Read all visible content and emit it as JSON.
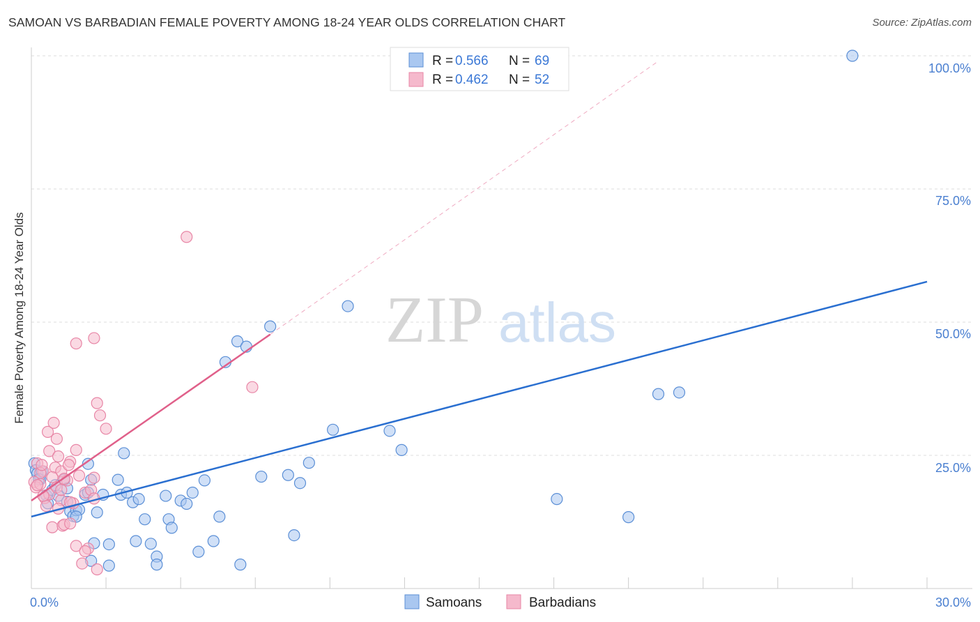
{
  "header": {
    "title": "SAMOAN VS BARBADIAN FEMALE POVERTY AMONG 18-24 YEAR OLDS CORRELATION CHART",
    "source": "Source: ZipAtlas.com"
  },
  "watermark": {
    "zip": "ZIP",
    "atlas": "atlas"
  },
  "legend": {
    "r_label": "R = ",
    "n_label": "N = ",
    "entries": [
      {
        "r": "0.566",
        "n": "69"
      },
      {
        "r": "0.462",
        "n": "52"
      }
    ]
  },
  "colors": {
    "samoans_fill": "#a9c7f0",
    "samoans_stroke": "#5b8fd6",
    "samoans_line": "#2a6fd0",
    "barbadians_fill": "#f5b9cc",
    "barbadians_stroke": "#e886a6",
    "barbadians_line": "#e0608a",
    "tick_text": "#4a7fd0",
    "grid": "#dddddd"
  },
  "chart_data": {
    "type": "scatter",
    "title": "SAMOAN VS BARBADIAN FEMALE POVERTY AMONG 18-24 YEAR OLDS CORRELATION CHART",
    "ylabel": "Female Poverty Among 18-24 Year Olds",
    "xlabel": "",
    "xlim": [
      0,
      30
    ],
    "ylim": [
      0,
      105
    ],
    "x_tick_labels": [
      {
        "value": 0,
        "label": "0.0%"
      },
      {
        "value": 30,
        "label": "30.0%"
      }
    ],
    "y_tick_labels": [
      {
        "value": 25,
        "label": "25.0%"
      },
      {
        "value": 50,
        "label": "50.0%"
      },
      {
        "value": 75,
        "label": "75.0%"
      },
      {
        "value": 100,
        "label": "100.0%"
      }
    ],
    "grid": true,
    "legend_position": "top-center",
    "series": [
      {
        "name": "Samoans",
        "trend": {
          "x": [
            0,
            30
          ],
          "y": [
            13.5,
            57.6
          ]
        },
        "points": [
          [
            0.1,
            23.5
          ],
          [
            0.15,
            22.2
          ],
          [
            0.2,
            21.6
          ],
          [
            0.3,
            20.5
          ],
          [
            0.35,
            22.0
          ],
          [
            0.5,
            17.5
          ],
          [
            0.55,
            16.0
          ],
          [
            0.7,
            18.5
          ],
          [
            0.8,
            19.4
          ],
          [
            0.9,
            17.4
          ],
          [
            1.1,
            20.4
          ],
          [
            1.2,
            16.3
          ],
          [
            1.3,
            14.5
          ],
          [
            1.4,
            13.6
          ],
          [
            1.5,
            14.7
          ],
          [
            1.6,
            14.8
          ],
          [
            1.8,
            17.6
          ],
          [
            1.9,
            23.4
          ],
          [
            2.0,
            20.4
          ],
          [
            2.1,
            8.5
          ],
          [
            2.2,
            14.3
          ],
          [
            2.4,
            17.6
          ],
          [
            2.6,
            8.3
          ],
          [
            2.9,
            20.4
          ],
          [
            3.0,
            17.6
          ],
          [
            3.1,
            25.4
          ],
          [
            3.4,
            16.2
          ],
          [
            3.5,
            8.9
          ],
          [
            3.8,
            13.0
          ],
          [
            4.0,
            8.4
          ],
          [
            4.2,
            6.0
          ],
          [
            4.5,
            17.4
          ],
          [
            4.6,
            13.0
          ],
          [
            4.7,
            11.4
          ],
          [
            5.0,
            16.5
          ],
          [
            5.2,
            15.9
          ],
          [
            5.4,
            18.0
          ],
          [
            5.6,
            6.9
          ],
          [
            5.8,
            20.3
          ],
          [
            6.1,
            8.9
          ],
          [
            6.3,
            13.5
          ],
          [
            6.5,
            42.5
          ],
          [
            6.9,
            46.4
          ],
          [
            7.2,
            45.4
          ],
          [
            7.7,
            21.0
          ],
          [
            8.0,
            49.2
          ],
          [
            8.6,
            21.3
          ],
          [
            8.8,
            10.0
          ],
          [
            9.0,
            19.8
          ],
          [
            9.3,
            23.6
          ],
          [
            10.1,
            29.8
          ],
          [
            10.6,
            53.0
          ],
          [
            12.0,
            29.6
          ],
          [
            12.4,
            26.0
          ],
          [
            17.6,
            16.8
          ],
          [
            20.0,
            13.4
          ],
          [
            21.0,
            36.5
          ],
          [
            21.7,
            36.8
          ],
          [
            27.5,
            100
          ],
          [
            2.0,
            5.2
          ],
          [
            2.6,
            4.3
          ],
          [
            3.2,
            18.0
          ],
          [
            4.2,
            4.5
          ],
          [
            7.0,
            4.5
          ],
          [
            1.2,
            18.8
          ],
          [
            0.25,
            20.5
          ],
          [
            1.5,
            13.5
          ],
          [
            3.6,
            16.8
          ],
          [
            1.9,
            18.0
          ]
        ]
      },
      {
        "name": "Barbadians",
        "trend": {
          "x": [
            0,
            8
          ],
          "y": [
            16.5,
            47.7
          ]
        },
        "trend_extension": {
          "x": [
            8,
            21
          ],
          "y": [
            47.7,
            99
          ]
        },
        "points": [
          [
            0.1,
            20.0
          ],
          [
            0.15,
            19.0
          ],
          [
            0.2,
            23.5
          ],
          [
            0.3,
            19.6
          ],
          [
            0.4,
            22.0
          ],
          [
            0.45,
            17.0
          ],
          [
            0.5,
            15.5
          ],
          [
            0.55,
            29.4
          ],
          [
            0.6,
            25.8
          ],
          [
            0.7,
            11.5
          ],
          [
            0.75,
            31.1
          ],
          [
            0.8,
            22.7
          ],
          [
            0.9,
            24.8
          ],
          [
            1.0,
            22.0
          ],
          [
            1.05,
            11.8
          ],
          [
            1.1,
            12.0
          ],
          [
            1.2,
            20.3
          ],
          [
            1.3,
            23.8
          ],
          [
            1.4,
            16.0
          ],
          [
            1.5,
            26.0
          ],
          [
            1.5,
            46.0
          ],
          [
            1.6,
            21.2
          ],
          [
            1.7,
            4.7
          ],
          [
            1.8,
            18.0
          ],
          [
            1.9,
            7.5
          ],
          [
            2.0,
            18.5
          ],
          [
            2.1,
            47.0
          ],
          [
            2.2,
            34.8
          ],
          [
            2.3,
            32.5
          ],
          [
            2.5,
            30.0
          ],
          [
            2.2,
            3.6
          ],
          [
            2.1,
            20.8
          ],
          [
            0.3,
            21.7
          ],
          [
            0.6,
            17.7
          ],
          [
            0.85,
            19.0
          ],
          [
            1.0,
            16.6
          ],
          [
            0.4,
            17.4
          ],
          [
            0.9,
            15.0
          ],
          [
            1.3,
            12.2
          ],
          [
            1.5,
            8.0
          ],
          [
            1.1,
            20.6
          ],
          [
            1.3,
            16.2
          ],
          [
            2.1,
            16.9
          ],
          [
            1.8,
            7.0
          ],
          [
            1.0,
            18.5
          ],
          [
            0.7,
            20.9
          ],
          [
            1.25,
            23.2
          ],
          [
            0.2,
            19.4
          ],
          [
            5.2,
            66.0
          ],
          [
            7.4,
            37.8
          ],
          [
            0.35,
            23.2
          ],
          [
            0.85,
            28.1
          ]
        ]
      }
    ]
  },
  "bottom_legend": [
    "Samoans",
    "Barbadians"
  ]
}
